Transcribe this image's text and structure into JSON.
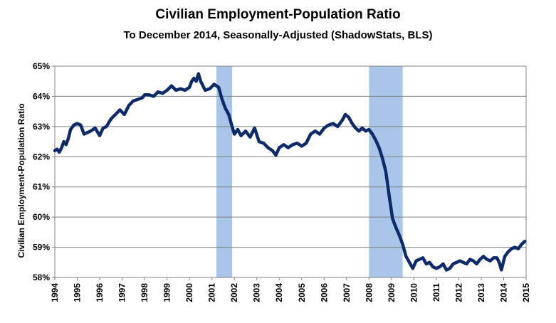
{
  "chart_data": {
    "type": "line",
    "title": "Civilian Employment-Population  Ratio",
    "subtitle": "To December 2014, Seasonally-Adjusted (ShadowStats, BLS)",
    "xlabel": "",
    "ylabel": "Civilian Employment-Population  Ratio",
    "xlim": [
      1994,
      2015
    ],
    "ylim": [
      58,
      65
    ],
    "grid": true,
    "line_color": "#0d2a6b",
    "recession_color": "#a9c6e8",
    "x_ticks": [
      "1994",
      "1995",
      "1996",
      "1997",
      "1998",
      "1999",
      "2000",
      "2001",
      "2002",
      "2003",
      "2004",
      "2005",
      "2006",
      "2007",
      "2008",
      "2009",
      "2010",
      "2011",
      "2012",
      "2013",
      "2014",
      "2015"
    ],
    "y_ticks": [
      "58%",
      "59%",
      "60%",
      "61%",
      "62%",
      "63%",
      "64%",
      "65%"
    ],
    "y_tick_values": [
      58,
      59,
      60,
      61,
      62,
      63,
      64,
      65
    ],
    "recessions": [
      [
        2001.2,
        2001.9
      ],
      [
        2008.0,
        2009.5
      ]
    ],
    "series": [
      {
        "x": [
          1994.0,
          1994.1,
          1994.2,
          1994.3,
          1994.4,
          1994.5,
          1994.6,
          1994.7,
          1994.85,
          1995.0,
          1995.15,
          1995.3,
          1995.45,
          1995.6,
          1995.8,
          1996.0,
          1996.15,
          1996.3,
          1996.5,
          1996.7,
          1996.9,
          1997.1,
          1997.3,
          1997.5,
          1997.7,
          1997.9,
          1998.0,
          1998.2,
          1998.4,
          1998.6,
          1998.8,
          1999.0,
          1999.2,
          1999.4,
          1999.6,
          1999.8,
          2000.0,
          2000.1,
          2000.2,
          2000.3,
          2000.4,
          2000.5,
          2000.7,
          2000.9,
          2001.1,
          2001.3,
          2001.45,
          2001.6,
          2001.75,
          2001.9,
          2002.0,
          2002.15,
          2002.3,
          2002.5,
          2002.7,
          2002.9,
          2003.1,
          2003.3,
          2003.5,
          2003.7,
          2003.85,
          2004.0,
          2004.2,
          2004.4,
          2004.6,
          2004.8,
          2005.0,
          2005.2,
          2005.4,
          2005.6,
          2005.8,
          2006.0,
          2006.2,
          2006.4,
          2006.6,
          2006.8,
          2006.95,
          2007.1,
          2007.25,
          2007.4,
          2007.55,
          2007.7,
          2007.85,
          2008.0,
          2008.15,
          2008.3,
          2008.45,
          2008.6,
          2008.75,
          2008.9,
          2009.05,
          2009.2,
          2009.35,
          2009.5,
          2009.65,
          2009.8,
          2009.95,
          2010.1,
          2010.25,
          2010.4,
          2010.55,
          2010.7,
          2010.85,
          2011.0,
          2011.15,
          2011.3,
          2011.45,
          2011.6,
          2011.75,
          2011.9,
          2012.05,
          2012.2,
          2012.35,
          2012.5,
          2012.65,
          2012.8,
          2012.95,
          2013.1,
          2013.25,
          2013.4,
          2013.55,
          2013.7,
          2013.8,
          2013.9,
          2014.05,
          2014.2,
          2014.35,
          2014.5,
          2014.65,
          2014.8,
          2014.95
        ],
        "y": [
          62.2,
          62.25,
          62.15,
          62.3,
          62.5,
          62.4,
          62.6,
          62.9,
          63.05,
          63.1,
          63.05,
          62.75,
          62.8,
          62.85,
          62.95,
          62.7,
          62.95,
          63.0,
          63.25,
          63.4,
          63.55,
          63.4,
          63.7,
          63.85,
          63.9,
          63.95,
          64.05,
          64.05,
          64.0,
          64.15,
          64.1,
          64.2,
          64.35,
          64.2,
          64.25,
          64.2,
          64.3,
          64.5,
          64.6,
          64.5,
          64.75,
          64.5,
          64.2,
          64.25,
          64.4,
          64.3,
          63.9,
          63.6,
          63.4,
          63.0,
          62.75,
          62.9,
          62.7,
          62.85,
          62.65,
          62.95,
          62.5,
          62.45,
          62.3,
          62.2,
          62.05,
          62.3,
          62.4,
          62.3,
          62.4,
          62.45,
          62.35,
          62.45,
          62.75,
          62.85,
          62.75,
          62.95,
          63.05,
          63.1,
          63.0,
          63.2,
          63.4,
          63.3,
          63.1,
          62.95,
          62.85,
          62.95,
          62.85,
          62.9,
          62.75,
          62.55,
          62.3,
          61.95,
          61.5,
          60.7,
          59.95,
          59.65,
          59.4,
          59.1,
          58.7,
          58.5,
          58.3,
          58.55,
          58.6,
          58.65,
          58.45,
          58.5,
          58.35,
          58.3,
          58.35,
          58.45,
          58.25,
          58.3,
          58.45,
          58.5,
          58.55,
          58.5,
          58.45,
          58.6,
          58.55,
          58.45,
          58.6,
          58.7,
          58.6,
          58.55,
          58.65,
          58.65,
          58.5,
          58.25,
          58.7,
          58.85,
          58.95,
          59.0,
          58.95,
          59.1,
          59.2
        ]
      }
    ]
  }
}
